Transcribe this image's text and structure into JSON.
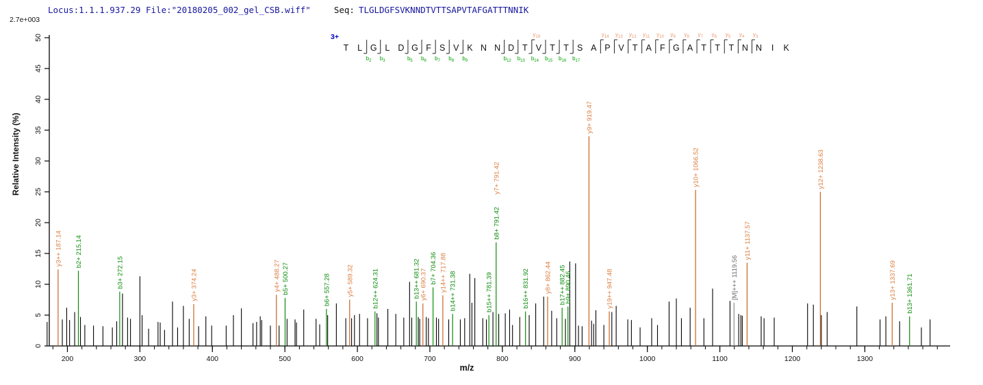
{
  "header": {
    "locus_file": "Locus:1.1.1.937.29 File:\"20180205_002_gel_CSB.wiff\"",
    "seq_label": "Seq:",
    "sequence": "TLGLDGFSVKNNDTVTTSAPVTAFGATTTNNIK",
    "base_intensity": "2.7e+003"
  },
  "colors": {
    "header_text": "#16169c",
    "charge_blue": "#0000cc",
    "y_line": "#c8641e",
    "y_label": "#dd7f42",
    "b_line": "#0a8a0a",
    "b_label": "#0f8c0f",
    "peak_black": "#000000",
    "precursor_line": "#8a8a8a",
    "precursor_label": "#6e6e6e",
    "seq_letter": "#111111",
    "seq_y_label": "#e8956a",
    "seq_b_label": "#00a000",
    "axis": "#000000"
  },
  "chart_data": {
    "type": "bar",
    "subtype": "ms2-stick-spectrum",
    "title": "",
    "xlabel": "m/z",
    "ylabel": "Relative  Intensity (%)",
    "xlim": [
      175,
      1420
    ],
    "ylim": [
      0,
      50
    ],
    "x_major_ticks": [
      200,
      300,
      400,
      500,
      600,
      700,
      800,
      900,
      1000,
      1100,
      1200,
      1300
    ],
    "x_minor_start": 180,
    "x_minor_end": 1400,
    "x_minor_step": 20,
    "y_ticks": [
      0,
      5,
      10,
      15,
      20,
      25,
      30,
      35,
      40,
      45,
      50
    ],
    "grid": false,
    "precursor_charge": "3+",
    "labeled_peaks": [
      {
        "label": "y3++ 187.14",
        "mz": 187.14,
        "pct": 12.4,
        "ion": "y"
      },
      {
        "label": "b2+ 215.14",
        "mz": 215.14,
        "pct": 12.2,
        "ion": "b"
      },
      {
        "label": "b3+ 272.15",
        "mz": 272.15,
        "pct": 8.8,
        "ion": "b"
      },
      {
        "label": "y3+ 374.24",
        "mz": 374.24,
        "pct": 6.8,
        "ion": "y"
      },
      {
        "label": "y4+ 488.27",
        "mz": 488.27,
        "pct": 8.3,
        "ion": "y"
      },
      {
        "label": "b5+ 500.27",
        "mz": 500.27,
        "pct": 7.8,
        "ion": "b"
      },
      {
        "label": "b6+ 557.28",
        "mz": 557.28,
        "pct": 6.0,
        "ion": "b"
      },
      {
        "label": "y5+ 589.32",
        "mz": 589.32,
        "pct": 7.5,
        "ion": "y"
      },
      {
        "label": "b12++ 624.31",
        "mz": 624.31,
        "pct": 5.6,
        "ion": "b"
      },
      {
        "label": "b13++ 681.32",
        "mz": 681.32,
        "pct": 7.2,
        "ion": "b"
      },
      {
        "label": "y6+ 690.37",
        "mz": 690.37,
        "pct": 6.9,
        "ion": "y"
      },
      {
        "label": "b7+ 704.36",
        "mz": 704.36,
        "pct": 9.5,
        "ion": "b"
      },
      {
        "label": "y14++ 717.88",
        "mz": 717.88,
        "pct": 8.2,
        "ion": "y"
      },
      {
        "label": "b14++ 731.38",
        "mz": 731.38,
        "pct": 5.2,
        "ion": "b"
      },
      {
        "label": "b15++ 781.39",
        "mz": 781.39,
        "pct": 5.0,
        "ion": "b"
      },
      {
        "label": "b8+ 791.42",
        "mz": 791.42,
        "pct": 16.8,
        "ion": "b"
      },
      {
        "label": "y7+ 791.42",
        "mz": 791.42,
        "pct": 16.8,
        "ion": "y",
        "stack": 66,
        "noline": true
      },
      {
        "label": "b16++ 831.92",
        "mz": 831.92,
        "pct": 5.6,
        "ion": "b"
      },
      {
        "label": "y8+ 862.44",
        "mz": 862.44,
        "pct": 8.0,
        "ion": "y"
      },
      {
        "label": "b17++ 882.45",
        "mz": 882.45,
        "pct": 6.2,
        "ion": "b"
      },
      {
        "label": "b9+ 890.46",
        "mz": 890.46,
        "pct": 6.4,
        "ion": "b"
      },
      {
        "label": "y9+ 919.47",
        "mz": 919.47,
        "pct": 34.0,
        "ion": "y"
      },
      {
        "label": "y19++ 947.48",
        "mz": 947.48,
        "pct": 5.6,
        "ion": "y"
      },
      {
        "label": "y10+ 1066.52",
        "mz": 1066.52,
        "pct": 25.3,
        "ion": "y"
      },
      {
        "label": "[M]+++ 1119.56",
        "mz": 1119.56,
        "pct": 7.0,
        "ion": "M"
      },
      {
        "label": "y11+ 1137.57",
        "mz": 1137.57,
        "pct": 13.5,
        "ion": "y"
      },
      {
        "label": "y12+ 1238.63",
        "mz": 1238.63,
        "pct": 25.0,
        "ion": "y"
      },
      {
        "label": "y13+ 1337.69",
        "mz": 1337.69,
        "pct": 7.0,
        "ion": "y"
      },
      {
        "label": "b13+ 1361.71",
        "mz": 1361.71,
        "pct": 4.8,
        "ion": "b"
      }
    ],
    "unlabeled_peaks": [
      [
        172,
        3.9
      ],
      [
        193,
        4.3
      ],
      [
        199,
        6.2
      ],
      [
        203,
        4.2
      ],
      [
        210,
        5.5
      ],
      [
        218,
        4.7
      ],
      [
        224,
        3.4
      ],
      [
        236,
        3.3
      ],
      [
        249,
        3.2
      ],
      [
        262,
        3.0
      ],
      [
        268,
        4.0
      ],
      [
        276,
        8.5
      ],
      [
        283,
        4.6
      ],
      [
        287,
        4.4
      ],
      [
        300,
        11.3
      ],
      [
        303,
        5.0
      ],
      [
        312,
        2.8
      ],
      [
        325,
        3.9
      ],
      [
        328,
        3.8
      ],
      [
        334,
        2.6
      ],
      [
        345,
        7.2
      ],
      [
        352,
        3.0
      ],
      [
        360,
        6.5
      ],
      [
        368,
        4.4
      ],
      [
        381,
        3.2
      ],
      [
        391,
        4.8
      ],
      [
        399,
        3.3
      ],
      [
        419,
        3.3
      ],
      [
        429,
        5.0
      ],
      [
        440,
        6.1
      ],
      [
        456,
        3.7
      ],
      [
        461,
        3.9
      ],
      [
        466,
        4.8
      ],
      [
        468,
        4.2
      ],
      [
        480,
        3.3
      ],
      [
        492,
        3.3
      ],
      [
        503,
        4.4
      ],
      [
        514,
        4.3
      ],
      [
        516,
        3.8
      ],
      [
        526,
        5.9
      ],
      [
        543,
        4.4
      ],
      [
        548,
        3.5
      ],
      [
        559,
        5.0
      ],
      [
        571,
        6.9
      ],
      [
        584,
        4.5
      ],
      [
        592,
        4.5
      ],
      [
        596,
        5.0
      ],
      [
        603,
        5.2
      ],
      [
        614,
        4.5
      ],
      [
        627,
        5.3
      ],
      [
        629,
        4.6
      ],
      [
        642,
        6.0
      ],
      [
        653,
        5.2
      ],
      [
        664,
        4.6
      ],
      [
        672,
        10.4
      ],
      [
        675,
        4.6
      ],
      [
        684,
        4.7
      ],
      [
        686,
        4.4
      ],
      [
        695,
        4.7
      ],
      [
        698,
        4.5
      ],
      [
        709,
        4.6
      ],
      [
        712,
        4.4
      ],
      [
        726,
        4.3
      ],
      [
        742,
        4.3
      ],
      [
        748,
        4.5
      ],
      [
        755,
        11.7
      ],
      [
        758,
        7.0
      ],
      [
        762,
        11.0
      ],
      [
        773,
        4.5
      ],
      [
        778,
        4.3
      ],
      [
        787,
        5.5
      ],
      [
        795,
        5.2
      ],
      [
        804,
        5.3
      ],
      [
        810,
        5.9
      ],
      [
        814,
        3.4
      ],
      [
        824,
        4.7
      ],
      [
        837,
        5.0
      ],
      [
        846,
        6.9
      ],
      [
        857,
        8.0
      ],
      [
        868,
        5.7
      ],
      [
        875,
        4.5
      ],
      [
        887,
        4.4
      ],
      [
        893,
        13.7
      ],
      [
        901,
        13.4
      ],
      [
        905,
        3.3
      ],
      [
        910,
        3.2
      ],
      [
        923,
        4.1
      ],
      [
        926,
        3.6
      ],
      [
        929,
        5.8
      ],
      [
        940,
        3.4
      ],
      [
        951,
        5.5
      ],
      [
        957,
        6.5
      ],
      [
        973,
        4.3
      ],
      [
        978,
        4.2
      ],
      [
        990,
        3.0
      ],
      [
        1006,
        4.5
      ],
      [
        1014,
        3.4
      ],
      [
        1030,
        7.2
      ],
      [
        1040,
        7.7
      ],
      [
        1047,
        4.5
      ],
      [
        1059,
        6.2
      ],
      [
        1078,
        4.5
      ],
      [
        1090,
        9.3
      ],
      [
        1114,
        7.3
      ],
      [
        1126,
        5.2
      ],
      [
        1129,
        5.0
      ],
      [
        1131,
        4.9
      ],
      [
        1157,
        4.8
      ],
      [
        1161,
        4.5
      ],
      [
        1175,
        4.6
      ],
      [
        1221,
        6.9
      ],
      [
        1229,
        6.7
      ],
      [
        1240,
        5.0
      ],
      [
        1248,
        5.5
      ],
      [
        1289,
        6.4
      ],
      [
        1321,
        4.3
      ],
      [
        1329,
        4.8
      ],
      [
        1348,
        4.0
      ],
      [
        1378,
        3.0
      ],
      [
        1390,
        4.3
      ]
    ],
    "sequence_annotation": {
      "charge": "3+",
      "residues": [
        "T",
        "L",
        "G",
        "L",
        "D",
        "G",
        "F",
        "S",
        "V",
        "K",
        "N",
        "N",
        "D",
        "T",
        "V",
        "T",
        "T",
        "S",
        "A",
        "P",
        "V",
        "T",
        "A",
        "F",
        "G",
        "A",
        "T",
        "T",
        "T",
        "N",
        "N",
        "I",
        "K"
      ],
      "b_marks": [
        {
          "pos": 2,
          "n": "2"
        },
        {
          "pos": 3,
          "n": "3"
        },
        {
          "pos": 5,
          "n": "5"
        },
        {
          "pos": 6,
          "n": "6"
        },
        {
          "pos": 7,
          "n": "7"
        },
        {
          "pos": 8,
          "n": "8"
        },
        {
          "pos": 9,
          "n": "9"
        },
        {
          "pos": 12,
          "n": "12"
        },
        {
          "pos": 13,
          "n": "13"
        },
        {
          "pos": 14,
          "n": "14"
        },
        {
          "pos": 15,
          "n": "15"
        },
        {
          "pos": 16,
          "n": "16"
        },
        {
          "pos": 17,
          "n": "17"
        }
      ],
      "y_marks": [
        {
          "pos": 14,
          "n": "19"
        },
        {
          "pos": 19,
          "n": "14"
        },
        {
          "pos": 20,
          "n": "13"
        },
        {
          "pos": 21,
          "n": "12"
        },
        {
          "pos": 22,
          "n": "11"
        },
        {
          "pos": 23,
          "n": "10"
        },
        {
          "pos": 24,
          "n": "9"
        },
        {
          "pos": 25,
          "n": "8"
        },
        {
          "pos": 26,
          "n": "7"
        },
        {
          "pos": 27,
          "n": "6"
        },
        {
          "pos": 28,
          "n": "5"
        },
        {
          "pos": 29,
          "n": "4"
        },
        {
          "pos": 30,
          "n": "3"
        }
      ]
    }
  }
}
